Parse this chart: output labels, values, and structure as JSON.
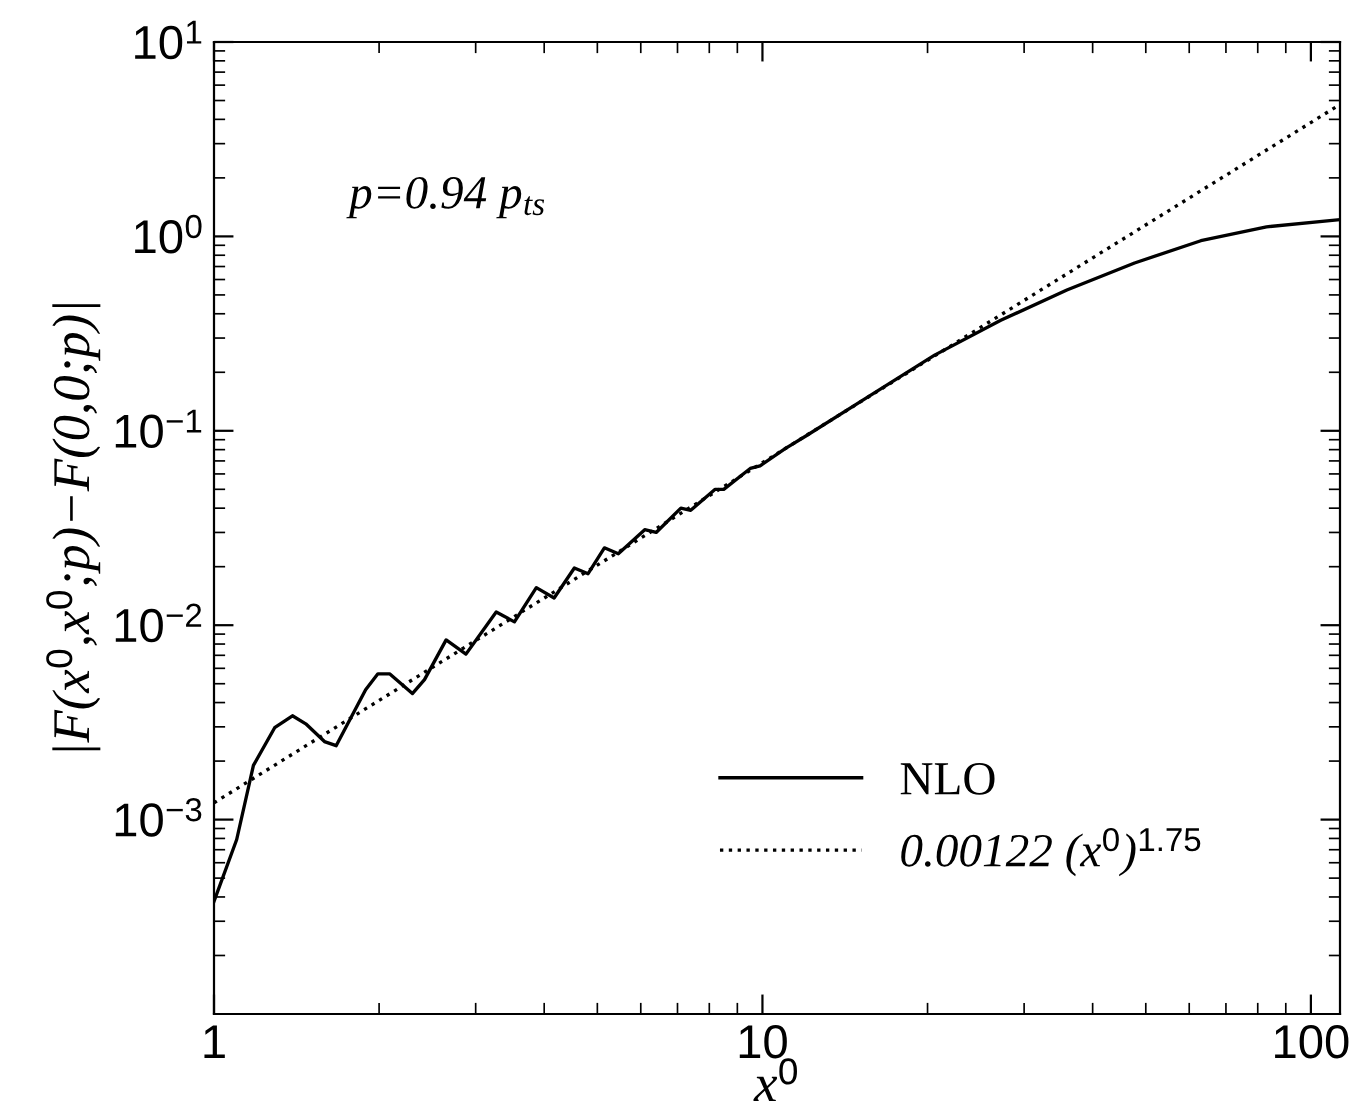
{
  "chart_data": {
    "type": "line",
    "xlabel": "x$^{0}$",
    "ylabel": "|F(x$^{0}$,x$^{0}$;p)−F(0,0;p)|",
    "log": "xy",
    "xlim": [
      1,
      113
    ],
    "ylim": [
      0.0001,
      10
    ],
    "xticks": [
      1,
      10,
      100
    ],
    "yticks": [
      {
        "value": 0.001,
        "label": "10$^{−3}$"
      },
      {
        "value": 0.01,
        "label": "10$^{−2}$"
      },
      {
        "value": 0.1,
        "label": "10$^{−1}$"
      },
      {
        "value": 1,
        "label": "10$^{0}$"
      },
      {
        "value": 10,
        "label": "10$^{1}$"
      }
    ],
    "grid": false,
    "legend": "bottom right",
    "annotations": [
      "p=0.94 p$_{ts}$"
    ],
    "series": [
      {
        "name": "NLO",
        "color": "#000000",
        "line_style": "solid",
        "x": [
          1,
          1.1,
          1.18,
          1.29,
          1.39,
          1.47,
          1.59,
          1.67,
          1.89,
          1.99,
          2.09,
          2.3,
          2.42,
          2.65,
          2.88,
          3.27,
          3.53,
          3.87,
          4.17,
          4.54,
          4.81,
          5.15,
          5.46,
          6.1,
          6.4,
          7.1,
          7.4,
          8.2,
          8.5,
          9.5,
          9.9,
          11,
          12,
          15.5,
          20.6,
          27.2,
          35.9,
          47.7,
          63,
          83,
          113
        ],
        "values": [
          0.00038,
          0.00079,
          0.0019,
          0.00297,
          0.00342,
          0.00311,
          0.00252,
          0.0024,
          0.00466,
          0.00562,
          0.00562,
          0.00445,
          0.00525,
          0.0084,
          0.0071,
          0.0117,
          0.0104,
          0.0156,
          0.0138,
          0.0197,
          0.0184,
          0.025,
          0.0233,
          0.031,
          0.03,
          0.04,
          0.039,
          0.05,
          0.05,
          0.064,
          0.066,
          0.081,
          0.094,
          0.148,
          0.245,
          0.37,
          0.53,
          0.73,
          0.95,
          1.12,
          1.22
        ]
      },
      {
        "name": "0.00122 (x$^{0}$)$^{1.75}$",
        "color": "#000000",
        "line_style": "dotted",
        "x": [
          1,
          113
        ],
        "values": [
          0.00122,
          4.77
        ]
      }
    ]
  }
}
